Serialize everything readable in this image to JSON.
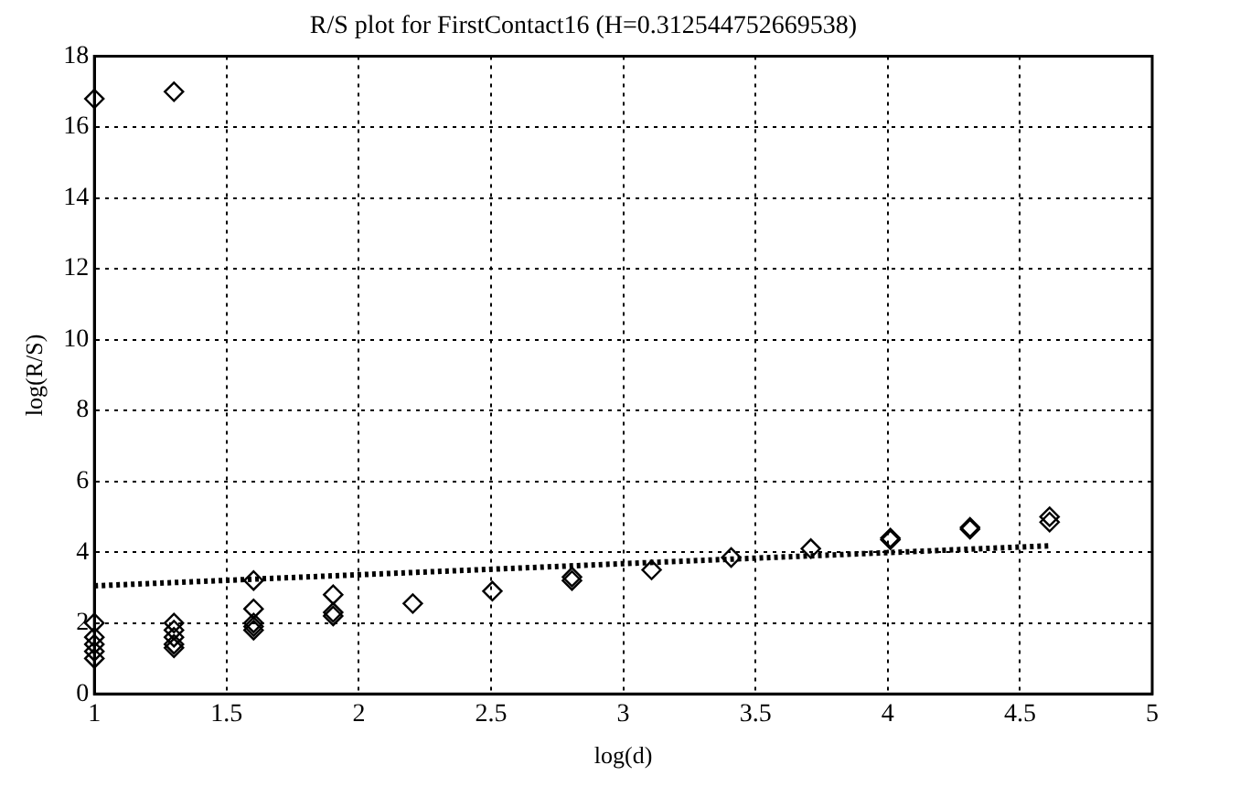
{
  "chart_data": {
    "type": "scatter",
    "title": "R/S plot for FirstContact16 (H=0.312544752669538)",
    "xlabel": "log(d)",
    "ylabel": "log(R/S)",
    "xlim": [
      1,
      5
    ],
    "xticks": [
      1,
      1.5,
      2,
      2.5,
      3,
      3.5,
      4,
      4.5,
      5
    ],
    "ylim": [
      0,
      18
    ],
    "yticks": [
      0,
      2,
      4,
      6,
      8,
      10,
      12,
      14,
      16,
      18
    ],
    "grid": true,
    "marker": "diamond",
    "series": [
      {
        "color": "#000000",
        "x": [
          1,
          1,
          1,
          1,
          1,
          1,
          1.301,
          1.301,
          1.301,
          1.301,
          1.301,
          1.301,
          1.602,
          1.602,
          1.602,
          1.602,
          1.602,
          1.903,
          1.903,
          1.903,
          2.204,
          2.505,
          2.806,
          2.806,
          3.107,
          3.408,
          3.709,
          4.01,
          4.01,
          4.311,
          4.311,
          4.612,
          4.612
        ],
        "values": [
          16.8,
          2.0,
          1.6,
          1.4,
          1.2,
          1.0,
          17.0,
          2.0,
          1.8,
          1.6,
          1.4,
          1.3,
          3.2,
          2.4,
          2.0,
          1.9,
          1.8,
          2.8,
          2.3,
          2.2,
          2.55,
          2.9,
          3.3,
          3.2,
          3.5,
          3.85,
          4.1,
          4.4,
          4.35,
          4.7,
          4.65,
          5.0,
          4.85
        ]
      },
      {
        "type": "line",
        "color": "#000000",
        "line_style": "dotted",
        "marker": "none",
        "x": [
          1,
          4.612
        ],
        "values": [
          3.05,
          4.18
        ]
      }
    ]
  }
}
